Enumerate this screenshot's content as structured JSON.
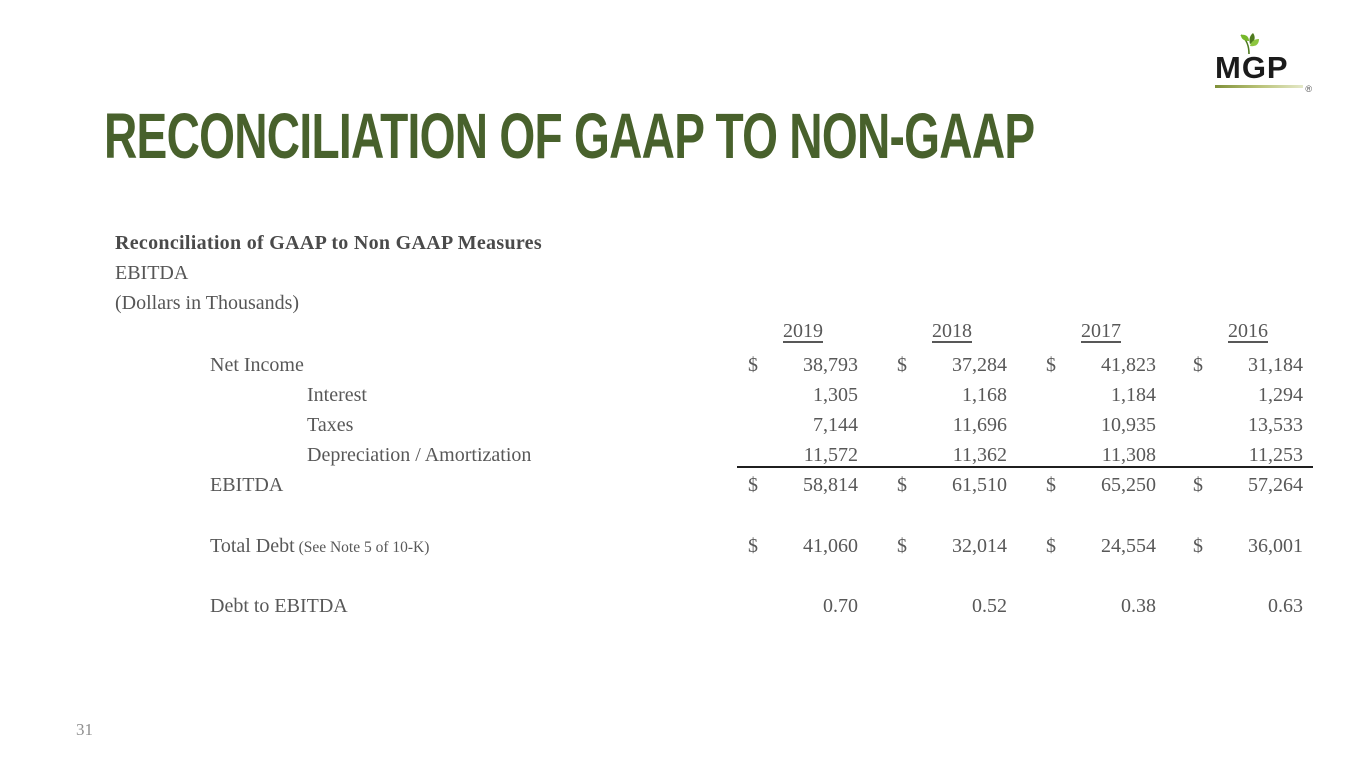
{
  "slide": {
    "title": "RECONCILIATION OF GAAP TO NON-GAAP",
    "page_number": "31"
  },
  "logo": {
    "text": "MGP",
    "registered_mark": "®",
    "leaf_icon": "leaf-sprig-icon"
  },
  "colors": {
    "title_green": "#48612c",
    "body_gray": "#585858",
    "logo_black": "#1b1b1b",
    "logo_rule_olive": "#7f9039",
    "leaf_green_light": "#76b82a",
    "leaf_green_dark": "#4e7a1e"
  },
  "table": {
    "heading": "Reconciliation of GAAP to Non GAAP Measures",
    "subheading": "EBITDA",
    "units": "(Dollars in Thousands)",
    "years": [
      "2019",
      "2018",
      "2017",
      "2016"
    ],
    "rows": [
      {
        "label": "Net Income",
        "indent": 1,
        "dollar": true,
        "values": [
          "38,793",
          "37,284",
          "41,823",
          "31,184"
        ]
      },
      {
        "label": "Interest",
        "indent": 2,
        "dollar": false,
        "values": [
          "1,305",
          "1,168",
          "1,184",
          "1,294"
        ]
      },
      {
        "label": "Taxes",
        "indent": 2,
        "dollar": false,
        "values": [
          "7,144",
          "11,696",
          "10,935",
          "13,533"
        ]
      },
      {
        "label": "Depreciation / Amortization",
        "indent": 2,
        "dollar": false,
        "values": [
          "11,572",
          "11,362",
          "11,308",
          "11,253"
        ]
      },
      {
        "label": "EBITDA",
        "indent": 1,
        "dollar": true,
        "values": [
          "58,814",
          "61,510",
          "65,250",
          "57,264"
        ]
      },
      {
        "label": "Total Debt",
        "note": "(See Note 5 of 10-K)",
        "indent": 1,
        "dollar": true,
        "values": [
          "41,060",
          "32,014",
          "24,554",
          "36,001"
        ]
      },
      {
        "label": "Debt to EBITDA",
        "indent": 1,
        "dollar": false,
        "values": [
          "0.70",
          "0.52",
          "0.38",
          "0.63"
        ]
      }
    ]
  }
}
